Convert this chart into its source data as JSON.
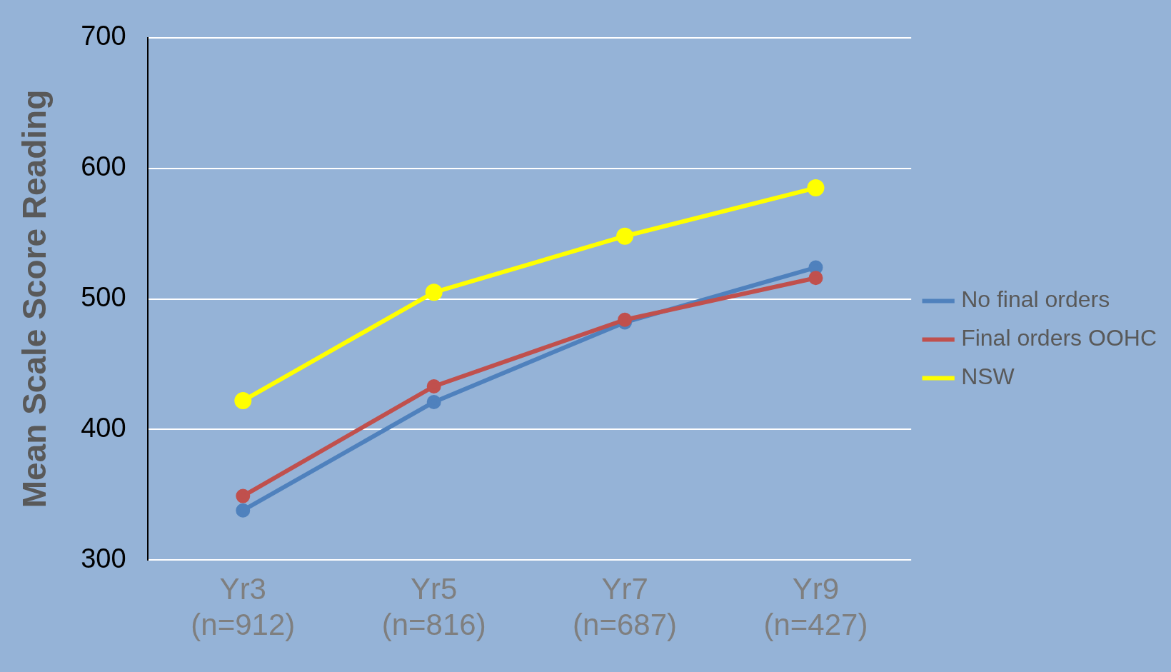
{
  "chart_data": {
    "type": "line",
    "ylabel": "Mean Scale Score Reading",
    "categories": [
      "Yr3\n(n=912)",
      "Yr5\n(n=816)",
      "Yr7\n(n=687)",
      "Yr9\n(n=427)"
    ],
    "series": [
      {
        "name": "No final orders",
        "color": "#4f81bd",
        "values": [
          338,
          421,
          482,
          524
        ]
      },
      {
        "name": "Final orders OOHC",
        "color": "#c0504d",
        "values": [
          349,
          433,
          484,
          516
        ]
      },
      {
        "name": "NSW",
        "color": "#ffff00",
        "values": [
          422,
          505,
          548,
          585
        ]
      }
    ],
    "ylim": [
      300,
      700
    ],
    "yticks": [
      300,
      400,
      500,
      600,
      700
    ],
    "grid": "y",
    "legend": "right",
    "marker": "circle",
    "line_style": "solid"
  }
}
